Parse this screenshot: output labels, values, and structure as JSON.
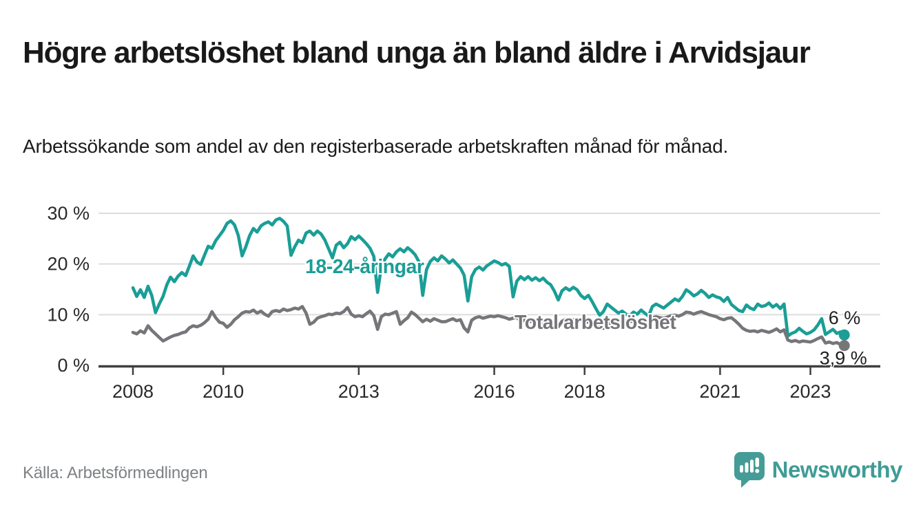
{
  "page": {
    "title": "Högre arbetslöshet bland unga än bland äldre i Arvidsjaur",
    "subtitle": "Arbetssökande som andel av den registerbaserade arbetskraften månad för månad.",
    "source": "Källa: Arbetsförmedlingen",
    "brand": {
      "name": "Newsworthy",
      "icon": "speech-bubble-bar-chart-icon",
      "color": "#3f9c96"
    }
  },
  "chart_data": {
    "type": "line",
    "title": "Högre arbetslöshet bland unga än bland äldre i Arvidsjaur",
    "subtitle": "Arbetssökande som andel av den registerbaserade arbetskraften månad för månad.",
    "x_unit": "month",
    "x_start_year": 2008,
    "x_end_label_month": "2023-10",
    "x_tick_years": [
      2008,
      2010,
      2013,
      2016,
      2018,
      2021,
      2023
    ],
    "y_ticks": [
      0,
      10,
      20,
      30
    ],
    "y_tick_labels": [
      "0 %",
      "10 %",
      "20 %",
      "30 %"
    ],
    "ylim": [
      0,
      31.5
    ],
    "grid": true,
    "legend_position": "inline-labels",
    "colors": {
      "young": "#1a9e96",
      "total": "#76767a",
      "grid": "#dddddd",
      "axis": "#3f3f3f",
      "tick_label": "#2a2a2a",
      "end_label": "#202020"
    },
    "series": [
      {
        "name": "18-24-åringar",
        "color": "#1a9e96",
        "end_label": "6 %",
        "end_value": 6.0,
        "values": [
          15.3,
          13.6,
          14.9,
          13.4,
          15.6,
          13.8,
          10.4,
          12.1,
          13.6,
          15.9,
          17.4,
          16.5,
          17.6,
          18.3,
          17.7,
          19.6,
          21.6,
          20.4,
          19.9,
          21.7,
          23.5,
          23.1,
          24.6,
          25.6,
          26.6,
          28.0,
          28.5,
          27.7,
          25.6,
          21.6,
          23.4,
          25.6,
          27.0,
          26.3,
          27.5,
          28.0,
          28.3,
          27.7,
          28.7,
          29.0,
          28.4,
          27.5,
          21.7,
          23.4,
          24.7,
          24.2,
          26.1,
          26.5,
          25.7,
          26.5,
          25.9,
          24.7,
          23.0,
          21.2,
          23.7,
          24.3,
          23.2,
          24.0,
          25.4,
          24.8,
          25.5,
          24.8,
          24.0,
          23.1,
          21.5,
          14.4,
          19.5,
          21.0,
          22.0,
          21.4,
          22.4,
          23.0,
          22.4,
          23.2,
          22.6,
          21.8,
          20.4,
          13.8,
          18.9,
          20.5,
          21.2,
          20.6,
          21.6,
          21.0,
          20.2,
          20.8,
          20.0,
          19.2,
          17.8,
          12.7,
          17.5,
          18.9,
          19.4,
          18.8,
          19.6,
          20.1,
          20.6,
          20.3,
          19.8,
          20.1,
          19.5,
          13.5,
          16.6,
          17.5,
          16.9,
          17.5,
          16.8,
          17.3,
          16.7,
          17.2,
          16.4,
          15.9,
          14.6,
          12.9,
          14.7,
          15.3,
          14.8,
          15.4,
          14.9,
          13.8,
          13.2,
          13.8,
          12.6,
          11.2,
          9.9,
          10.6,
          12.1,
          11.5,
          10.9,
          10.3,
          10.7,
          10.1,
          9.8,
          10.5,
          10.1,
          10.9,
          10.3,
          9.7,
          11.6,
          12.1,
          11.7,
          11.3,
          11.9,
          12.5,
          13.1,
          12.7,
          13.6,
          14.9,
          14.4,
          13.7,
          14.1,
          14.8,
          14.2,
          13.4,
          13.9,
          13.5,
          13.3,
          12.6,
          13.4,
          12.0,
          11.4,
          10.8,
          10.6,
          11.9,
          11.3,
          11.0,
          12.1,
          11.6,
          11.8,
          12.3,
          11.5,
          12.0,
          11.2,
          12.1,
          5.8,
          6.3,
          6.6,
          7.3,
          6.7,
          6.2,
          6.5,
          7.0,
          8.0,
          9.2,
          6.1,
          6.6,
          7.1,
          6.3,
          6.6,
          6.0
        ]
      },
      {
        "name": "Total arbetslöshet",
        "color": "#76767a",
        "end_label": "3,9 %",
        "end_value": 3.9,
        "values": [
          6.5,
          6.2,
          6.8,
          6.4,
          7.8,
          6.9,
          6.2,
          5.5,
          4.8,
          5.2,
          5.6,
          5.9,
          6.1,
          6.4,
          6.6,
          7.4,
          7.8,
          7.6,
          7.9,
          8.4,
          9.1,
          10.6,
          9.4,
          8.5,
          8.3,
          7.5,
          8.1,
          9.0,
          9.6,
          10.3,
          10.6,
          10.5,
          10.9,
          10.3,
          10.7,
          10.1,
          9.7,
          10.6,
          10.8,
          10.6,
          11.1,
          10.8,
          11.0,
          11.3,
          11.1,
          11.6,
          10.3,
          8.1,
          8.5,
          9.3,
          9.6,
          9.8,
          10.1,
          10.0,
          10.3,
          10.2,
          10.6,
          11.4,
          10.1,
          9.6,
          9.8,
          9.6,
          10.2,
          10.7,
          9.8,
          7.1,
          9.6,
          10.1,
          10.0,
          10.3,
          10.6,
          8.1,
          8.8,
          9.4,
          10.5,
          10.0,
          9.3,
          8.6,
          9.1,
          8.7,
          9.2,
          8.9,
          8.6,
          8.6,
          8.9,
          9.2,
          8.8,
          9.0,
          7.4,
          6.6,
          8.9,
          9.4,
          9.6,
          9.3,
          9.5,
          9.7,
          9.6,
          9.8,
          9.6,
          9.4,
          9.1,
          9.3,
          9.5,
          8.6,
          8.9,
          8.6,
          8.7,
          8.5,
          8.8,
          8.4,
          8.6,
          8.9,
          8.3,
          7.6,
          8.7,
          9.1,
          8.8,
          9.0,
          8.6,
          8.9,
          8.4,
          8.6,
          8.8,
          8.1,
          7.5,
          7.3,
          8.1,
          8.3,
          8.6,
          8.4,
          8.6,
          8.8,
          8.6,
          8.8,
          8.5,
          8.7,
          8.4,
          8.1,
          9.4,
          9.6,
          9.4,
          9.3,
          9.5,
          9.8,
          9.9,
          9.7,
          10.0,
          10.5,
          10.4,
          10.1,
          10.4,
          10.6,
          10.3,
          10.0,
          9.8,
          9.6,
          9.2,
          9.0,
          9.3,
          9.4,
          8.8,
          8.1,
          7.3,
          6.9,
          6.7,
          6.8,
          6.6,
          6.9,
          6.7,
          6.5,
          6.8,
          7.2,
          6.6,
          7.0,
          5.0,
          4.7,
          4.9,
          4.6,
          4.8,
          4.7,
          4.6,
          4.9,
          5.3,
          5.6,
          4.4,
          4.6,
          4.3,
          4.5,
          4.1,
          3.9
        ]
      }
    ]
  }
}
